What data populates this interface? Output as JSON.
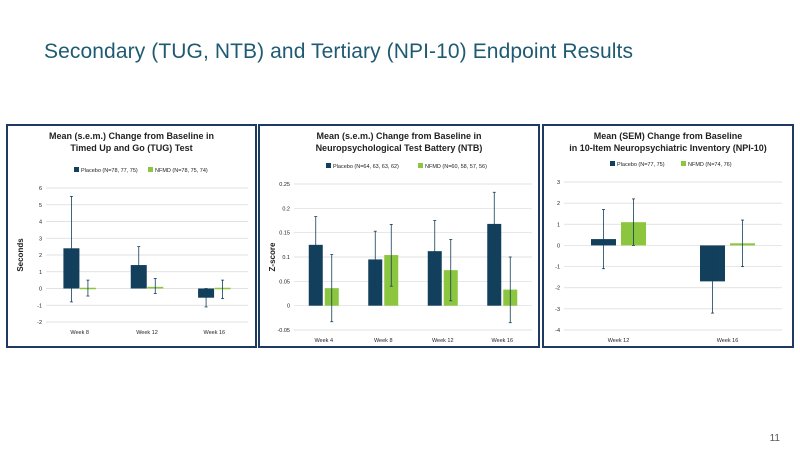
{
  "slide": {
    "title": "Secondary (TUG, NTB) and Tertiary (NPI-10) Endpoint Results",
    "page_number": "11"
  },
  "colors": {
    "title": "#1f5a73",
    "placebo": "#123f5c",
    "nfmd": "#8cc63f",
    "border": "#1f3a62",
    "grid": "#d9d9d9",
    "text": "#222222"
  },
  "chart_data": [
    {
      "type": "bar",
      "title": [
        "Mean (s.e.m.) Change from Baseline in",
        "Timed Up and Go (TUG) Test"
      ],
      "xlabel": "",
      "ylabel": "Seconds",
      "categories": [
        "Week 8",
        "Week 12",
        "Week 16"
      ],
      "ylim": [
        -2,
        6
      ],
      "yticks": [
        -2,
        -1,
        0,
        1,
        2,
        3,
        4,
        5,
        6
      ],
      "grid": true,
      "legend": "top",
      "series": [
        {
          "name": "Placebo (N=78, 77, 75)",
          "values": [
            2.4,
            1.4,
            -0.55
          ],
          "err_low": [
            -0.8,
            0.3,
            -1.1
          ],
          "err_high": [
            5.5,
            2.5,
            0.0
          ]
        },
        {
          "name": "NFMD (N=78, 75, 74)",
          "values": [
            0.05,
            0.1,
            -0.05
          ],
          "err_low": [
            -0.45,
            -0.3,
            -0.6
          ],
          "err_high": [
            0.5,
            0.6,
            0.5
          ]
        }
      ]
    },
    {
      "type": "bar",
      "title": [
        "Mean (s.e.m.) Change from Baseline in",
        "Neuropsychological Test  Battery (NTB)"
      ],
      "xlabel": "",
      "ylabel": "Z-score",
      "categories": [
        "Week 4",
        "Week 8",
        "Week 12",
        "Week 16"
      ],
      "ylim": [
        -0.05,
        0.25
      ],
      "yticks": [
        -0.05,
        0,
        0.05,
        0.1,
        0.15,
        0.2,
        0.25
      ],
      "grid": true,
      "legend": "top",
      "series": [
        {
          "name": "Placebo (N=64, 63, 63, 62)",
          "values": [
            0.125,
            0.095,
            0.112,
            0.168
          ],
          "err_low": [
            0.07,
            0.04,
            0.05,
            0.1
          ],
          "err_high": [
            0.183,
            0.153,
            0.175,
            0.233
          ]
        },
        {
          "name": "NFMD (N=60, 58, 57, 56)",
          "values": [
            0.036,
            0.104,
            0.073,
            0.033
          ],
          "err_low": [
            -0.033,
            0.04,
            0.01,
            -0.035
          ],
          "err_high": [
            0.105,
            0.167,
            0.136,
            0.1
          ]
        }
      ]
    },
    {
      "type": "bar",
      "title": [
        "Mean (SEM) Change from Baseline",
        "in 10-Item Neuropsychiatric Inventory (NPI-10)"
      ],
      "xlabel": "",
      "ylabel": "",
      "categories": [
        "Week 12",
        "Week 16"
      ],
      "ylim": [
        -4,
        3
      ],
      "yticks": [
        -4,
        -3,
        -2,
        -1,
        0,
        1,
        2,
        3
      ],
      "grid": true,
      "legend": "top",
      "series": [
        {
          "name": "Placebo (N=77, 75)",
          "values": [
            0.3,
            -1.7
          ],
          "err_low": [
            -1.1,
            -3.2
          ],
          "err_high": [
            1.7,
            -0.05
          ]
        },
        {
          "name": "NFMD (N=74, 76)",
          "values": [
            1.1,
            0.1
          ],
          "err_low": [
            0.0,
            -1.0
          ],
          "err_high": [
            2.2,
            1.2
          ]
        }
      ]
    }
  ]
}
